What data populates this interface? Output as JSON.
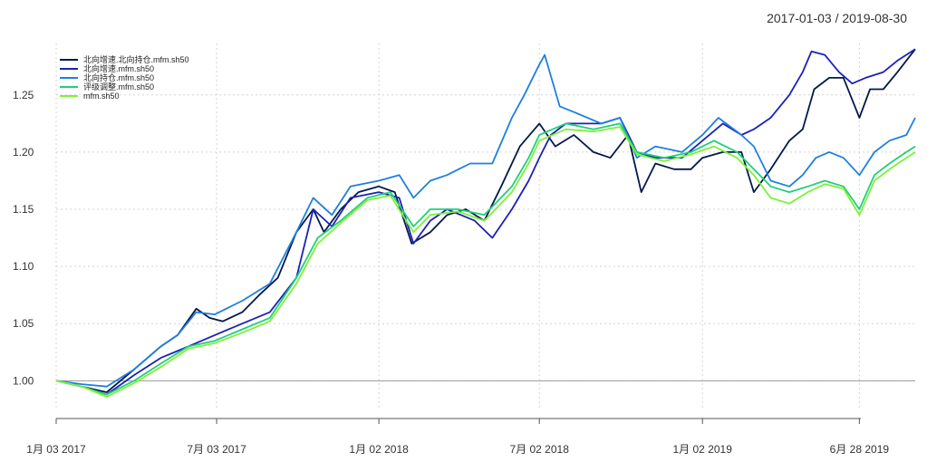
{
  "date_range": "2017-01-03 / 2019-08-30",
  "chart_data": {
    "type": "line",
    "title": "",
    "xlabel": "",
    "ylabel": "",
    "x_start": "2017-01-03",
    "x_end": "2019-08-30",
    "ylim": [
      0.967,
      1.295
    ],
    "y_ticks": [
      1.0,
      1.05,
      1.1,
      1.15,
      1.2,
      1.25
    ],
    "y_tick_labels": [
      "1.00",
      "1.05",
      "1.10",
      "1.15",
      "1.20",
      "1.25"
    ],
    "x_ticks": [
      "2017-01-03",
      "2017-07-03",
      "2018-01-02",
      "2018-07-02",
      "2019-01-02",
      "2019-06-28"
    ],
    "x_tick_labels": [
      "1月 03 2017",
      "7月 03 2017",
      "1月 02 2018",
      "7月 02 2018",
      "1月 02 2019",
      "6月 28 2019"
    ],
    "grid": true,
    "legend_position": "top-left",
    "series": [
      {
        "name": "北向增速.北向持仓.mfm.sh50",
        "color": "#05184a",
        "points": [
          [
            "2017-01-03",
            1.0
          ],
          [
            "2017-02-01",
            0.995
          ],
          [
            "2017-03-01",
            0.99
          ],
          [
            "2017-04-01",
            1.01
          ],
          [
            "2017-05-01",
            1.03
          ],
          [
            "2017-05-20",
            1.04
          ],
          [
            "2017-06-10",
            1.063
          ],
          [
            "2017-06-25",
            1.055
          ],
          [
            "2017-07-10",
            1.052
          ],
          [
            "2017-08-01",
            1.06
          ],
          [
            "2017-08-20",
            1.075
          ],
          [
            "2017-09-10",
            1.09
          ],
          [
            "2017-10-01",
            1.13
          ],
          [
            "2017-10-20",
            1.15
          ],
          [
            "2017-11-01",
            1.13
          ],
          [
            "2017-11-20",
            1.15
          ],
          [
            "2017-12-10",
            1.165
          ],
          [
            "2018-01-02",
            1.17
          ],
          [
            "2018-01-20",
            1.165
          ],
          [
            "2018-02-08",
            1.12
          ],
          [
            "2018-03-01",
            1.13
          ],
          [
            "2018-03-20",
            1.145
          ],
          [
            "2018-04-10",
            1.15
          ],
          [
            "2018-05-01",
            1.14
          ],
          [
            "2018-05-20",
            1.17
          ],
          [
            "2018-06-10",
            1.205
          ],
          [
            "2018-07-02",
            1.225
          ],
          [
            "2018-07-20",
            1.205
          ],
          [
            "2018-08-10",
            1.215
          ],
          [
            "2018-09-01",
            1.2
          ],
          [
            "2018-09-20",
            1.195
          ],
          [
            "2018-10-10",
            1.215
          ],
          [
            "2018-10-25",
            1.165
          ],
          [
            "2018-11-10",
            1.19
          ],
          [
            "2018-12-01",
            1.185
          ],
          [
            "2018-12-20",
            1.185
          ],
          [
            "2019-01-02",
            1.195
          ],
          [
            "2019-01-25",
            1.2
          ],
          [
            "2019-02-15",
            1.2
          ],
          [
            "2019-03-01",
            1.165
          ],
          [
            "2019-03-20",
            1.185
          ],
          [
            "2019-04-10",
            1.21
          ],
          [
            "2019-04-25",
            1.22
          ],
          [
            "2019-05-08",
            1.255
          ],
          [
            "2019-05-25",
            1.265
          ],
          [
            "2019-06-10",
            1.265
          ],
          [
            "2019-06-28",
            1.23
          ],
          [
            "2019-07-10",
            1.255
          ],
          [
            "2019-07-25",
            1.255
          ],
          [
            "2019-08-10",
            1.27
          ],
          [
            "2019-08-30",
            1.29
          ]
        ]
      },
      {
        "name": "北向增速.mfm.sh50",
        "color": "#1a22b8",
        "points": [
          [
            "2017-01-03",
            1.0
          ],
          [
            "2017-02-01",
            0.995
          ],
          [
            "2017-03-01",
            0.988
          ],
          [
            "2017-04-01",
            1.005
          ],
          [
            "2017-05-01",
            1.02
          ],
          [
            "2017-06-01",
            1.03
          ],
          [
            "2017-07-01",
            1.04
          ],
          [
            "2017-08-01",
            1.05
          ],
          [
            "2017-09-01",
            1.06
          ],
          [
            "2017-10-01",
            1.09
          ],
          [
            "2017-10-20",
            1.15
          ],
          [
            "2017-11-10",
            1.135
          ],
          [
            "2017-12-01",
            1.16
          ],
          [
            "2018-01-02",
            1.165
          ],
          [
            "2018-01-25",
            1.16
          ],
          [
            "2018-02-10",
            1.12
          ],
          [
            "2018-03-01",
            1.14
          ],
          [
            "2018-03-20",
            1.15
          ],
          [
            "2018-04-20",
            1.14
          ],
          [
            "2018-05-10",
            1.125
          ],
          [
            "2018-06-01",
            1.15
          ],
          [
            "2018-06-20",
            1.175
          ],
          [
            "2018-07-02",
            1.195
          ],
          [
            "2018-07-15",
            1.215
          ],
          [
            "2018-08-01",
            1.225
          ],
          [
            "2018-08-20",
            1.225
          ],
          [
            "2018-09-10",
            1.225
          ],
          [
            "2018-10-01",
            1.23
          ],
          [
            "2018-10-20",
            1.2
          ],
          [
            "2018-11-10",
            1.195
          ],
          [
            "2018-12-10",
            1.195
          ],
          [
            "2019-01-02",
            1.21
          ],
          [
            "2019-01-25",
            1.225
          ],
          [
            "2019-02-15",
            1.215
          ],
          [
            "2019-03-01",
            1.22
          ],
          [
            "2019-03-20",
            1.23
          ],
          [
            "2019-04-10",
            1.25
          ],
          [
            "2019-04-25",
            1.27
          ],
          [
            "2019-05-05",
            1.288
          ],
          [
            "2019-05-20",
            1.285
          ],
          [
            "2019-06-05",
            1.27
          ],
          [
            "2019-06-20",
            1.26
          ],
          [
            "2019-07-05",
            1.265
          ],
          [
            "2019-07-25",
            1.27
          ],
          [
            "2019-08-10",
            1.28
          ],
          [
            "2019-08-30",
            1.29
          ]
        ]
      },
      {
        "name": "北向持仓.mfm.sh50",
        "color": "#1e7fe0",
        "points": [
          [
            "2017-01-03",
            1.0
          ],
          [
            "2017-02-01",
            0.997
          ],
          [
            "2017-03-01",
            0.995
          ],
          [
            "2017-04-01",
            1.01
          ],
          [
            "2017-05-01",
            1.03
          ],
          [
            "2017-05-20",
            1.04
          ],
          [
            "2017-06-10",
            1.06
          ],
          [
            "2017-07-01",
            1.058
          ],
          [
            "2017-08-01",
            1.07
          ],
          [
            "2017-09-01",
            1.085
          ],
          [
            "2017-10-01",
            1.13
          ],
          [
            "2017-10-20",
            1.16
          ],
          [
            "2017-11-10",
            1.145
          ],
          [
            "2017-12-01",
            1.17
          ],
          [
            "2018-01-02",
            1.175
          ],
          [
            "2018-01-25",
            1.18
          ],
          [
            "2018-02-10",
            1.16
          ],
          [
            "2018-03-01",
            1.175
          ],
          [
            "2018-03-20",
            1.18
          ],
          [
            "2018-04-15",
            1.19
          ],
          [
            "2018-05-10",
            1.19
          ],
          [
            "2018-06-01",
            1.23
          ],
          [
            "2018-06-15",
            1.25
          ],
          [
            "2018-07-01",
            1.275
          ],
          [
            "2018-07-08",
            1.285
          ],
          [
            "2018-07-25",
            1.24
          ],
          [
            "2018-08-10",
            1.235
          ],
          [
            "2018-09-10",
            1.225
          ],
          [
            "2018-10-01",
            1.23
          ],
          [
            "2018-10-20",
            1.195
          ],
          [
            "2018-11-10",
            1.205
          ],
          [
            "2018-12-10",
            1.2
          ],
          [
            "2019-01-02",
            1.215
          ],
          [
            "2019-01-20",
            1.23
          ],
          [
            "2019-02-15",
            1.215
          ],
          [
            "2019-03-01",
            1.205
          ],
          [
            "2019-03-20",
            1.175
          ],
          [
            "2019-04-10",
            1.17
          ],
          [
            "2019-04-25",
            1.18
          ],
          [
            "2019-05-10",
            1.195
          ],
          [
            "2019-05-25",
            1.2
          ],
          [
            "2019-06-10",
            1.195
          ],
          [
            "2019-06-28",
            1.18
          ],
          [
            "2019-07-15",
            1.2
          ],
          [
            "2019-08-01",
            1.21
          ],
          [
            "2019-08-20",
            1.215
          ],
          [
            "2019-08-30",
            1.23
          ]
        ]
      },
      {
        "name": "评级调整.mfm.sh50",
        "color": "#1fd07a",
        "points": [
          [
            "2017-01-03",
            1.0
          ],
          [
            "2017-02-01",
            0.995
          ],
          [
            "2017-03-01",
            0.988
          ],
          [
            "2017-04-01",
            1.0
          ],
          [
            "2017-05-01",
            1.015
          ],
          [
            "2017-06-01",
            1.03
          ],
          [
            "2017-07-01",
            1.035
          ],
          [
            "2017-08-01",
            1.045
          ],
          [
            "2017-09-01",
            1.055
          ],
          [
            "2017-10-01",
            1.09
          ],
          [
            "2017-10-25",
            1.125
          ],
          [
            "2017-11-20",
            1.14
          ],
          [
            "2017-12-20",
            1.16
          ],
          [
            "2018-01-15",
            1.165
          ],
          [
            "2018-02-10",
            1.135
          ],
          [
            "2018-03-01",
            1.15
          ],
          [
            "2018-04-01",
            1.15
          ],
          [
            "2018-05-01",
            1.145
          ],
          [
            "2018-06-01",
            1.17
          ],
          [
            "2018-06-20",
            1.195
          ],
          [
            "2018-07-02",
            1.215
          ],
          [
            "2018-08-01",
            1.225
          ],
          [
            "2018-09-01",
            1.22
          ],
          [
            "2018-10-01",
            1.225
          ],
          [
            "2018-10-20",
            1.2
          ],
          [
            "2018-11-20",
            1.195
          ],
          [
            "2018-12-20",
            1.2
          ],
          [
            "2019-01-15",
            1.21
          ],
          [
            "2019-02-10",
            1.2
          ],
          [
            "2019-03-01",
            1.185
          ],
          [
            "2019-03-20",
            1.17
          ],
          [
            "2019-04-10",
            1.165
          ],
          [
            "2019-05-01",
            1.17
          ],
          [
            "2019-05-20",
            1.175
          ],
          [
            "2019-06-10",
            1.17
          ],
          [
            "2019-06-28",
            1.15
          ],
          [
            "2019-07-15",
            1.18
          ],
          [
            "2019-08-01",
            1.19
          ],
          [
            "2019-08-20",
            1.2
          ],
          [
            "2019-08-30",
            1.205
          ]
        ]
      },
      {
        "name": "mfm.sh50",
        "color": "#7ef03a",
        "points": [
          [
            "2017-01-03",
            1.0
          ],
          [
            "2017-02-01",
            0.995
          ],
          [
            "2017-03-01",
            0.986
          ],
          [
            "2017-04-01",
            0.998
          ],
          [
            "2017-05-01",
            1.012
          ],
          [
            "2017-06-01",
            1.028
          ],
          [
            "2017-07-01",
            1.033
          ],
          [
            "2017-08-01",
            1.042
          ],
          [
            "2017-09-01",
            1.052
          ],
          [
            "2017-10-01",
            1.085
          ],
          [
            "2017-10-25",
            1.12
          ],
          [
            "2017-11-20",
            1.138
          ],
          [
            "2017-12-20",
            1.158
          ],
          [
            "2018-01-15",
            1.162
          ],
          [
            "2018-02-10",
            1.13
          ],
          [
            "2018-03-01",
            1.145
          ],
          [
            "2018-04-01",
            1.148
          ],
          [
            "2018-05-01",
            1.14
          ],
          [
            "2018-06-01",
            1.165
          ],
          [
            "2018-06-20",
            1.19
          ],
          [
            "2018-07-02",
            1.21
          ],
          [
            "2018-08-01",
            1.22
          ],
          [
            "2018-09-01",
            1.218
          ],
          [
            "2018-10-01",
            1.222
          ],
          [
            "2018-10-20",
            1.198
          ],
          [
            "2018-11-20",
            1.192
          ],
          [
            "2018-12-20",
            1.198
          ],
          [
            "2019-01-15",
            1.205
          ],
          [
            "2019-02-10",
            1.195
          ],
          [
            "2019-03-01",
            1.18
          ],
          [
            "2019-03-20",
            1.16
          ],
          [
            "2019-04-10",
            1.155
          ],
          [
            "2019-05-01",
            1.165
          ],
          [
            "2019-05-20",
            1.172
          ],
          [
            "2019-06-10",
            1.168
          ],
          [
            "2019-06-28",
            1.145
          ],
          [
            "2019-07-15",
            1.175
          ],
          [
            "2019-08-01",
            1.185
          ],
          [
            "2019-08-20",
            1.195
          ],
          [
            "2019-08-30",
            1.2
          ]
        ]
      }
    ]
  }
}
